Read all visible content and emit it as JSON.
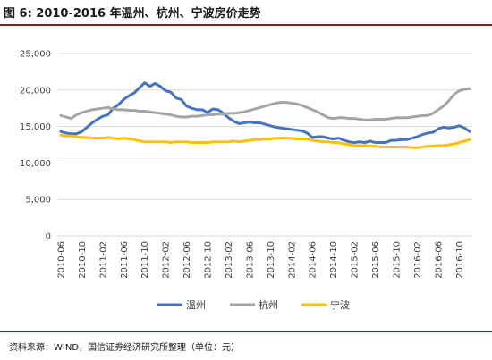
{
  "figure": {
    "title": "图 6:  2010-2016 年温州、杭州、宁波房价走势",
    "source": "资料来源：WIND，国信证券经济研究所整理（单位：元）"
  },
  "chart_data": {
    "type": "line",
    "title": "",
    "xlabel": "",
    "ylabel": "",
    "ylim": [
      0,
      25000
    ],
    "yticks": [
      "25,000",
      "20,000",
      "15,000",
      "10,000",
      "5,000",
      "0"
    ],
    "grid": true,
    "legend_position": "bottom",
    "x": [
      "2010-06",
      "2010-07",
      "2010-08",
      "2010-09",
      "2010-10",
      "2010-11",
      "2010-12",
      "2011-01",
      "2011-02",
      "2011-03",
      "2011-04",
      "2011-05",
      "2011-06",
      "2011-07",
      "2011-08",
      "2011-09",
      "2011-10",
      "2011-11",
      "2011-12",
      "2012-01",
      "2012-02",
      "2012-03",
      "2012-04",
      "2012-05",
      "2012-06",
      "2012-07",
      "2012-08",
      "2012-09",
      "2012-10",
      "2012-11",
      "2012-12",
      "2013-01",
      "2013-02",
      "2013-03",
      "2013-04",
      "2013-05",
      "2013-06",
      "2013-07",
      "2013-08",
      "2013-09",
      "2013-10",
      "2013-11",
      "2013-12",
      "2014-01",
      "2014-02",
      "2014-03",
      "2014-04",
      "2014-05",
      "2014-06",
      "2014-07",
      "2014-08",
      "2014-09",
      "2014-10",
      "2014-11",
      "2014-12",
      "2015-01",
      "2015-02",
      "2015-03",
      "2015-04",
      "2015-05",
      "2015-06",
      "2015-07",
      "2015-08",
      "2015-09",
      "2015-10",
      "2015-11",
      "2015-12",
      "2016-01",
      "2016-02",
      "2016-03",
      "2016-04",
      "2016-05",
      "2016-06",
      "2016-07",
      "2016-08",
      "2016-09",
      "2016-10",
      "2016-11",
      "2016-12"
    ],
    "x_tick_labels": [
      "2010-06",
      "2010-10",
      "2011-02",
      "2011-06",
      "2011-10",
      "2012-02",
      "2012-06",
      "2012-10",
      "2013-02",
      "2013-06",
      "2013-10",
      "2014-02",
      "2014-06",
      "2014-10",
      "2015-02",
      "2015-06",
      "2015-10",
      "2016-02",
      "2016-06",
      "2016-10"
    ],
    "series": [
      {
        "name": "温州",
        "color": "#4472C4",
        "values": [
          14300,
          14100,
          14000,
          14000,
          14300,
          14900,
          15500,
          16000,
          16400,
          16600,
          17500,
          18000,
          18700,
          19200,
          19600,
          20300,
          21000,
          20500,
          20900,
          20500,
          19900,
          19700,
          18900,
          18700,
          17800,
          17500,
          17300,
          17300,
          16900,
          17400,
          17300,
          16800,
          16200,
          15700,
          15400,
          15500,
          15600,
          15500,
          15500,
          15300,
          15100,
          14900,
          14800,
          14700,
          14600,
          14500,
          14400,
          14100,
          13500,
          13600,
          13600,
          13400,
          13300,
          13400,
          13100,
          12900,
          12800,
          12900,
          12800,
          13000,
          12800,
          12800,
          12800,
          13100,
          13100,
          13200,
          13200,
          13400,
          13600,
          13900,
          14100,
          14200,
          14700,
          14900,
          14800,
          14900,
          15100,
          14800,
          14300
        ]
      },
      {
        "name": "杭州",
        "color": "#A5A5A5",
        "values": [
          16500,
          16300,
          16100,
          16600,
          16900,
          17100,
          17300,
          17400,
          17500,
          17600,
          17400,
          17300,
          17300,
          17200,
          17200,
          17100,
          17100,
          17000,
          16900,
          16800,
          16700,
          16600,
          16400,
          16300,
          16300,
          16400,
          16400,
          16500,
          16600,
          16600,
          16700,
          16700,
          16800,
          16800,
          16900,
          17000,
          17200,
          17400,
          17600,
          17800,
          18000,
          18200,
          18300,
          18300,
          18200,
          18100,
          17900,
          17600,
          17300,
          17000,
          16600,
          16200,
          16100,
          16200,
          16200,
          16100,
          16100,
          16000,
          15900,
          15900,
          16000,
          16000,
          16000,
          16100,
          16200,
          16200,
          16200,
          16300,
          16400,
          16500,
          16500,
          16800,
          17300,
          17800,
          18500,
          19400,
          19900,
          20100,
          20200
        ]
      },
      {
        "name": "宁波",
        "color": "#FFC000",
        "values": [
          13800,
          13700,
          13700,
          13600,
          13500,
          13500,
          13400,
          13400,
          13400,
          13500,
          13400,
          13300,
          13400,
          13300,
          13200,
          13000,
          12900,
          12900,
          12900,
          12900,
          12900,
          12800,
          12900,
          12900,
          12900,
          12800,
          12800,
          12800,
          12800,
          12900,
          12900,
          12900,
          12900,
          13000,
          12900,
          13000,
          13100,
          13200,
          13200,
          13300,
          13300,
          13400,
          13400,
          13400,
          13400,
          13300,
          13300,
          13300,
          13100,
          13000,
          12900,
          12900,
          12800,
          12800,
          12600,
          12500,
          12400,
          12400,
          12400,
          12300,
          12300,
          12200,
          12200,
          12200,
          12200,
          12200,
          12200,
          12100,
          12100,
          12200,
          12300,
          12300,
          12400,
          12400,
          12500,
          12600,
          12800,
          13000,
          13200
        ]
      }
    ]
  }
}
